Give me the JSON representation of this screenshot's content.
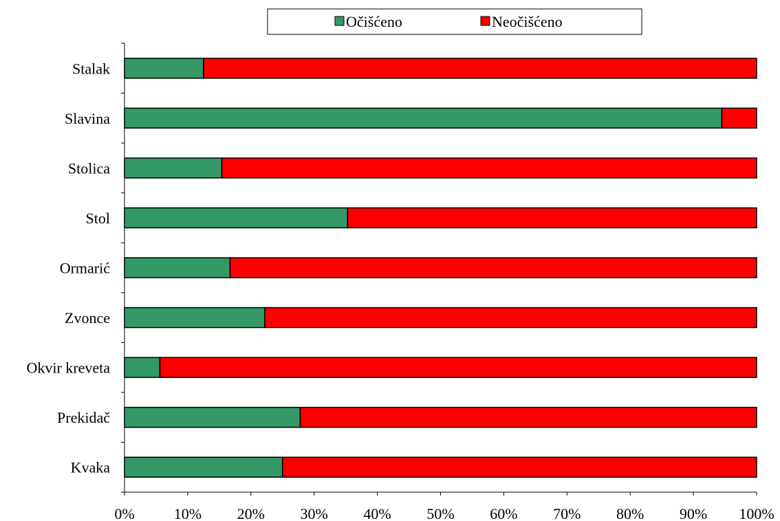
{
  "chart_data": {
    "type": "bar",
    "orientation": "horizontal",
    "stacked": "percent",
    "categories": [
      "Stalak",
      "Slavina",
      "Stolica",
      "Stol",
      "Ormarić",
      "Zvonce",
      "Okvir kreveta",
      "Prekidač",
      "Kvaka"
    ],
    "series": [
      {
        "name": "Očišćeno",
        "color": "#339966",
        "values": [
          12.5,
          94.5,
          15.4,
          35.3,
          16.7,
          22.2,
          5.6,
          27.8,
          25.0
        ]
      },
      {
        "name": "Neočišćeno",
        "color": "#ff0000",
        "values": [
          87.5,
          5.5,
          84.6,
          64.7,
          83.3,
          77.8,
          94.4,
          72.2,
          75.0
        ]
      }
    ],
    "xlim": [
      0,
      100
    ],
    "xticks": [
      "0%",
      "10%",
      "20%",
      "30%",
      "40%",
      "50%",
      "60%",
      "70%",
      "80%",
      "90%",
      "100%"
    ],
    "grid": false,
    "legend_position": "top"
  }
}
